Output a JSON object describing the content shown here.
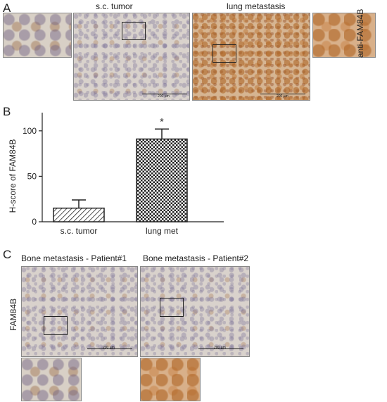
{
  "panel_a": {
    "letter": "A",
    "label_sc": "s.c. tumor",
    "label_lung": "lung metastasis",
    "stain_label": "anti-FAM84B",
    "scale_text_1": "200 µm",
    "scale_text_2": "200 µm"
  },
  "panel_b": {
    "letter": "B"
  },
  "panel_c": {
    "letter": "C",
    "label_p1": "Bone metastasis - Patient#1",
    "label_p2": "Bone metastasis - Patient#2",
    "stain_label": "FAM84B",
    "scale_text_1": "200 µm",
    "scale_text_2": "200 µm"
  },
  "chart_data": {
    "type": "bar",
    "categories": [
      "s.c. tumor",
      "lung met"
    ],
    "values": [
      15,
      91
    ],
    "errors": [
      9,
      11
    ],
    "ylabel": "H-score of FAM84B",
    "ylim": [
      0,
      120
    ],
    "yticks": [
      "0",
      "50",
      "100"
    ],
    "annotation": "*",
    "fill": [
      "diagonal-hatch",
      "checkerboard"
    ]
  }
}
